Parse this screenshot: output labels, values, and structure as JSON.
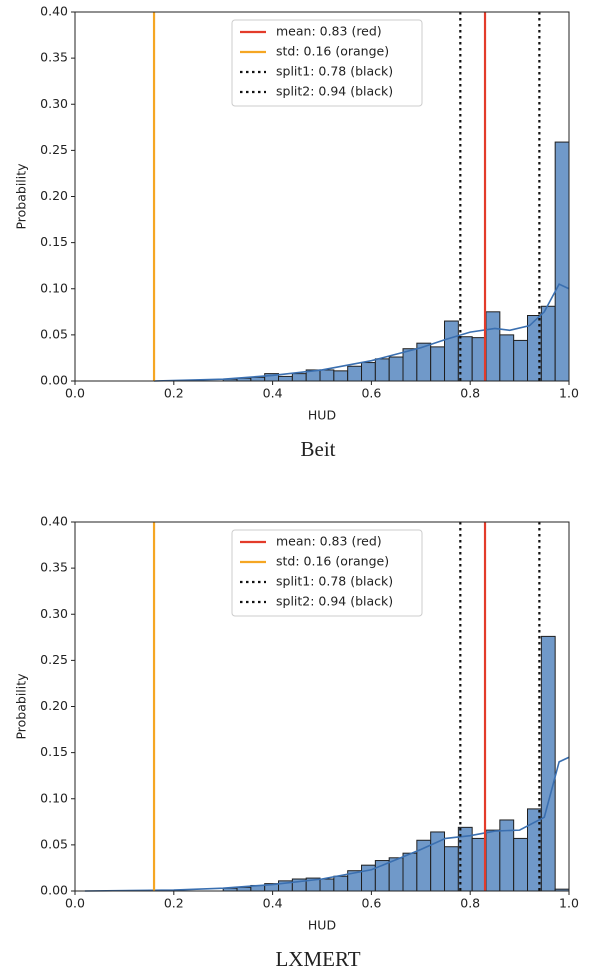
{
  "chart_data": [
    {
      "type": "histogram",
      "caption": "Beit",
      "xlabel": "HUD",
      "ylabel": "Probability",
      "bins": [
        0.3,
        0.328,
        0.356,
        0.384,
        0.412,
        0.44,
        0.468,
        0.496,
        0.524,
        0.552,
        0.58,
        0.608,
        0.636,
        0.664,
        0.692,
        0.72,
        0.748,
        0.776,
        0.804,
        0.832,
        0.86,
        0.888,
        0.916,
        0.944,
        0.972,
        1.0
      ],
      "counts": [
        0.002,
        0.003,
        0.004,
        0.008,
        0.005,
        0.008,
        0.012,
        0.012,
        0.011,
        0.016,
        0.02,
        0.024,
        0.026,
        0.035,
        0.041,
        0.037,
        0.065,
        0.048,
        0.047,
        0.075,
        0.05,
        0.044,
        0.071,
        0.081,
        0.259
      ],
      "color": "#7099c9",
      "kde": {
        "color": "#3a6fb0",
        "x": [
          0.16,
          0.3,
          0.4,
          0.5,
          0.6,
          0.7,
          0.75,
          0.8,
          0.85,
          0.88,
          0.92,
          0.95,
          0.98,
          1.0
        ],
        "y": [
          0,
          0.002,
          0.006,
          0.012,
          0.022,
          0.036,
          0.045,
          0.053,
          0.057,
          0.055,
          0.06,
          0.075,
          0.105,
          0.1
        ]
      },
      "vlines": [
        {
          "label": "mean: 0.83 (red)",
          "value": 0.83,
          "color": "#e33b2a",
          "style": "solid"
        },
        {
          "label": "std: 0.16 (orange)",
          "value": 0.16,
          "color": "#f5a623",
          "style": "solid"
        },
        {
          "label": "split1: 0.78 (black)",
          "value": 0.78,
          "color": "#111111",
          "style": "dotted"
        },
        {
          "label": "split2: 0.94 (black)",
          "value": 0.94,
          "color": "#111111",
          "style": "dotted"
        }
      ],
      "legend": "upper center",
      "xlim": [
        0,
        1
      ],
      "ylim": [
        0,
        0.4
      ],
      "xticks": [
        {
          "value": 0,
          "label": "0.0"
        },
        0.2,
        0.4,
        0.6,
        0.8,
        {
          "value": 1,
          "label": "1.0"
        }
      ],
      "yticks": [
        {
          "value": 0,
          "label": "0.00"
        },
        0.05,
        {
          "value": 0.1,
          "label": "0.10"
        },
        0.15,
        {
          "value": 0.2,
          "label": "0.20"
        },
        0.25,
        {
          "value": 0.3,
          "label": "0.30"
        },
        0.35,
        {
          "value": 0.4,
          "label": "0.40"
        }
      ]
    },
    {
      "type": "histogram",
      "caption": "LXMERT",
      "xlabel": "HUD",
      "ylabel": "Probability",
      "bins": [
        0.3,
        0.328,
        0.356,
        0.384,
        0.412,
        0.44,
        0.468,
        0.496,
        0.524,
        0.552,
        0.58,
        0.608,
        0.636,
        0.664,
        0.692,
        0.72,
        0.748,
        0.776,
        0.804,
        0.832,
        0.86,
        0.888,
        0.916,
        0.944,
        0.972,
        1.0
      ],
      "counts": [
        0.003,
        0.004,
        0.006,
        0.008,
        0.011,
        0.013,
        0.014,
        0.013,
        0.016,
        0.022,
        0.028,
        0.033,
        0.036,
        0.041,
        0.055,
        0.064,
        0.048,
        0.069,
        0.057,
        0.066,
        0.077,
        0.057,
        0.089,
        0.276,
        0.002
      ],
      "color": "#7099c9",
      "kde": {
        "color": "#3a6fb0",
        "x": [
          0.02,
          0.2,
          0.3,
          0.4,
          0.5,
          0.6,
          0.7,
          0.75,
          0.8,
          0.85,
          0.9,
          0.95,
          0.98,
          1.0
        ],
        "y": [
          0,
          0.001,
          0.003,
          0.007,
          0.013,
          0.023,
          0.045,
          0.057,
          0.06,
          0.065,
          0.066,
          0.08,
          0.14,
          0.145
        ]
      },
      "vlines": [
        {
          "label": "mean: 0.83 (red)",
          "value": 0.83,
          "color": "#e33b2a",
          "style": "solid"
        },
        {
          "label": "std: 0.16 (orange)",
          "value": 0.16,
          "color": "#f5a623",
          "style": "solid"
        },
        {
          "label": "split1: 0.78 (black)",
          "value": 0.78,
          "color": "#111111",
          "style": "dotted"
        },
        {
          "label": "split2: 0.94 (black)",
          "value": 0.94,
          "color": "#111111",
          "style": "dotted"
        }
      ],
      "legend": "upper center",
      "xlim": [
        0,
        1
      ],
      "ylim": [
        0,
        0.4
      ],
      "xticks": [
        {
          "value": 0,
          "label": "0.0"
        },
        0.2,
        0.4,
        0.6,
        0.8,
        {
          "value": 1,
          "label": "1.0"
        }
      ],
      "yticks": [
        {
          "value": 0,
          "label": "0.00"
        },
        0.05,
        {
          "value": 0.1,
          "label": "0.10"
        },
        0.15,
        {
          "value": 0.2,
          "label": "0.20"
        },
        0.25,
        {
          "value": 0.3,
          "label": "0.30"
        },
        0.35,
        {
          "value": 0.4,
          "label": "0.40"
        }
      ]
    }
  ]
}
